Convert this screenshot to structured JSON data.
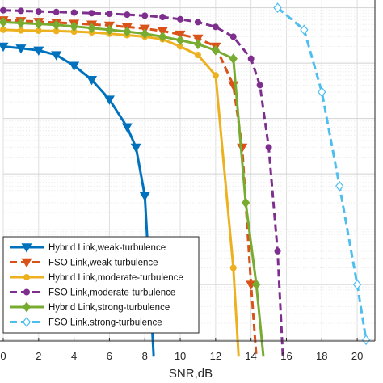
{
  "chart_data": {
    "type": "line",
    "title": "",
    "xlabel": "SNR,dB",
    "ylabel": "",
    "x_ticks": [
      0,
      2,
      4,
      6,
      8,
      10,
      12,
      14,
      16,
      18,
      20
    ],
    "x_tick_labels": [
      "0",
      "2",
      "4",
      "6",
      "8",
      "10",
      "12",
      "14",
      "16",
      "18",
      "20"
    ],
    "xlim": [
      0,
      21
    ],
    "y_scale": "log",
    "ylim": [
      1e-06,
      1
    ],
    "grid": true,
    "minor_grid": true,
    "legend_position": "bottom-left",
    "series": [
      {
        "name": "Hybrid Link,weak-turbulence",
        "color": "#0072BD",
        "line_style": "solid",
        "marker": "triangle-down",
        "marker_fill": "#0072BD",
        "x": [
          0,
          1,
          2,
          3,
          4,
          5,
          6,
          7,
          7.5,
          8,
          8.3,
          8.5
        ],
        "y": [
          0.2,
          0.185,
          0.17,
          0.14,
          0.09,
          0.05,
          0.022,
          0.007,
          0.003,
          0.0004,
          8e-06,
          5e-07
        ]
      },
      {
        "name": "FSO Link,weak-turbulence",
        "color": "#D95319",
        "line_style": "dashed",
        "marker": "triangle-down",
        "marker_fill": "#D95319",
        "x": [
          0,
          1,
          2,
          3,
          4,
          5,
          6,
          7,
          8,
          9,
          10,
          11,
          12,
          13,
          13.5,
          14,
          14.3
        ],
        "y": [
          0.6,
          0.58,
          0.56,
          0.54,
          0.52,
          0.5,
          0.48,
          0.45,
          0.42,
          0.38,
          0.33,
          0.28,
          0.2,
          0.04,
          0.003,
          1e-05,
          5e-07
        ]
      },
      {
        "name": "Hybrid Link,moderate-turbulence",
        "color": "#EDB120",
        "line_style": "solid",
        "marker": "circle",
        "marker_fill": "#EDB120",
        "x": [
          0,
          1,
          2,
          3,
          4,
          5,
          6,
          7,
          8,
          9,
          10,
          11,
          12,
          13,
          13.3
        ],
        "y": [
          0.4,
          0.39,
          0.385,
          0.38,
          0.37,
          0.36,
          0.34,
          0.32,
          0.3,
          0.27,
          0.2,
          0.14,
          0.06,
          2e-05,
          5e-07
        ]
      },
      {
        "name": "FSO Link,moderate-turbulence",
        "color": "#7E2F8E",
        "line_style": "dashed",
        "marker": "circle",
        "marker_fill": "#7E2F8E",
        "x": [
          0,
          1,
          2,
          3,
          4,
          5,
          6,
          7,
          8,
          9,
          10,
          11,
          12,
          13,
          14,
          14.5,
          15,
          15.5,
          15.8
        ],
        "y": [
          0.9,
          0.88,
          0.86,
          0.84,
          0.82,
          0.8,
          0.78,
          0.75,
          0.72,
          0.68,
          0.62,
          0.55,
          0.45,
          0.3,
          0.12,
          0.04,
          0.003,
          4e-05,
          5e-07
        ]
      },
      {
        "name": "Hybrid Link,strong-turbulence",
        "color": "#77AC30",
        "line_style": "solid",
        "marker": "diamond",
        "marker_fill": "#77AC30",
        "x": [
          0,
          1,
          2,
          3,
          4,
          5,
          6,
          7,
          8,
          9,
          10,
          11,
          12,
          13,
          13.7,
          14.3,
          14.7
        ],
        "y": [
          0.55,
          0.53,
          0.51,
          0.49,
          0.46,
          0.43,
          0.4,
          0.37,
          0.34,
          0.3,
          0.26,
          0.22,
          0.17,
          0.12,
          0.0003,
          1e-05,
          5e-07
        ]
      },
      {
        "name": "FSO Link,strong-turbulence",
        "color": "#4DBEEE",
        "line_style": "dashed",
        "marker": "diamond",
        "marker_fill": "#ffffff",
        "x": [
          15.5,
          17,
          18,
          19,
          20,
          20.5
        ],
        "y": [
          1.0,
          0.4,
          0.03,
          0.0006,
          1e-05,
          1e-06
        ]
      }
    ]
  }
}
